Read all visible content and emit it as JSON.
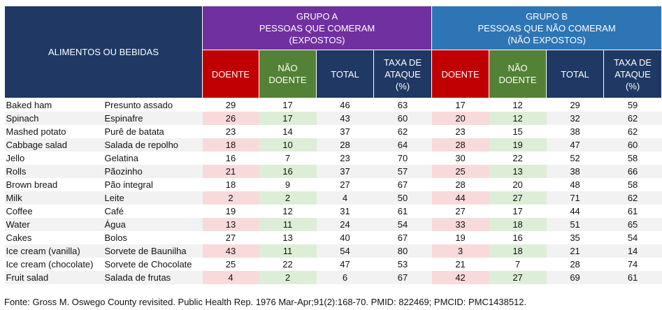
{
  "header": {
    "food_col": "ALIMENTOS OU BEBIDAS",
    "group_a": [
      "GRUPO A",
      "PESSOAS QUE COMERAM",
      "(EXPOSTOS)"
    ],
    "group_b": [
      "GRUPO B",
      "PESSOAS QUE NÃO COMERAM",
      "(NÃO EXPOSTOS)"
    ],
    "doente": "DOENTE",
    "nao_doente": [
      "NÃO",
      "DOENTE"
    ],
    "total": "TOTAL",
    "taxa": [
      "TAXA DE",
      "ATAQUE",
      "(%)"
    ]
  },
  "rows": [
    {
      "en": "Baked ham",
      "pt": "Presunto assado",
      "a": [
        "29",
        "17",
        "46",
        "63"
      ],
      "b": [
        "17",
        "12",
        "29",
        "59"
      ],
      "hl": false
    },
    {
      "en": "Spinach",
      "pt": "Espinafre",
      "a": [
        "26",
        "17",
        "43",
        "60"
      ],
      "b": [
        "20",
        "12",
        "32",
        "62"
      ],
      "hl": true
    },
    {
      "en": "Mashed potato",
      "pt": "Purê de batata",
      "a": [
        "23",
        "14",
        "37",
        "62"
      ],
      "b": [
        "23",
        "15",
        "38",
        "62"
      ],
      "hl": false
    },
    {
      "en": "Cabbage salad",
      "pt": "Salada de repolho",
      "a": [
        "18",
        "10",
        "28",
        "64"
      ],
      "b": [
        "28",
        "19",
        "47",
        "60"
      ],
      "hl": true
    },
    {
      "en": "Jello",
      "pt": "Gelatina",
      "a": [
        "16",
        "7",
        "23",
        "70"
      ],
      "b": [
        "30",
        "22",
        "52",
        "58"
      ],
      "hl": false
    },
    {
      "en": "Rolls",
      "pt": "Pãozinho",
      "a": [
        "21",
        "16",
        "37",
        "57"
      ],
      "b": [
        "25",
        "13",
        "38",
        "66"
      ],
      "hl": true
    },
    {
      "en": "Brown bread",
      "pt": "Pão integral",
      "a": [
        "18",
        "9",
        "27",
        "67"
      ],
      "b": [
        "28",
        "20",
        "48",
        "58"
      ],
      "hl": false
    },
    {
      "en": "Milk",
      "pt": "Leite",
      "a": [
        "2",
        "2",
        "4",
        "50"
      ],
      "b": [
        "44",
        "27",
        "71",
        "62"
      ],
      "hl": true
    },
    {
      "en": "Coffee",
      "pt": "Café",
      "a": [
        "19",
        "12",
        "31",
        "61"
      ],
      "b": [
        "27",
        "17",
        "44",
        "61"
      ],
      "hl": false
    },
    {
      "en": "Water",
      "pt": "Água",
      "a": [
        "13",
        "11",
        "24",
        "54"
      ],
      "b": [
        "33",
        "18",
        "51",
        "65"
      ],
      "hl": true
    },
    {
      "en": "Cakes",
      "pt": "Bolos",
      "a": [
        "27",
        "13",
        "40",
        "67"
      ],
      "b": [
        "19",
        "16",
        "35",
        "54"
      ],
      "hl": false
    },
    {
      "en": "Ice cream (vanilla)",
      "pt": "Sorvete de Baunilha",
      "a": [
        "43",
        "11",
        "54",
        "80"
      ],
      "b": [
        "3",
        "18",
        "21",
        "14"
      ],
      "hl": true
    },
    {
      "en": "Ice cream (chocolate)",
      "pt": "Sorvete de Chocolate",
      "a": [
        "25",
        "22",
        "47",
        "53"
      ],
      "b": [
        "21",
        "7",
        "28",
        "74"
      ],
      "hl": false
    },
    {
      "en": "Fruit salad",
      "pt": "Salada de frutas",
      "a": [
        "4",
        "2",
        "6",
        "67"
      ],
      "b": [
        "42",
        "27",
        "69",
        "61"
      ],
      "hl": true
    }
  ],
  "footer": "Fonte: Gross M. Oswego County revisited. Public Health Rep. 1976 Mar-Apr;91(2):168-70. PMID: 822469; PMCID: PMC1438512.",
  "colors": {
    "header_navy": "#1f3864",
    "group_a_purple": "#7030a0",
    "group_b_blue": "#2e75b6",
    "doente_red": "#c00000",
    "nao_doente_green": "#538135",
    "highlight_red": "#f9dada",
    "highlight_green": "#dcefd6"
  }
}
